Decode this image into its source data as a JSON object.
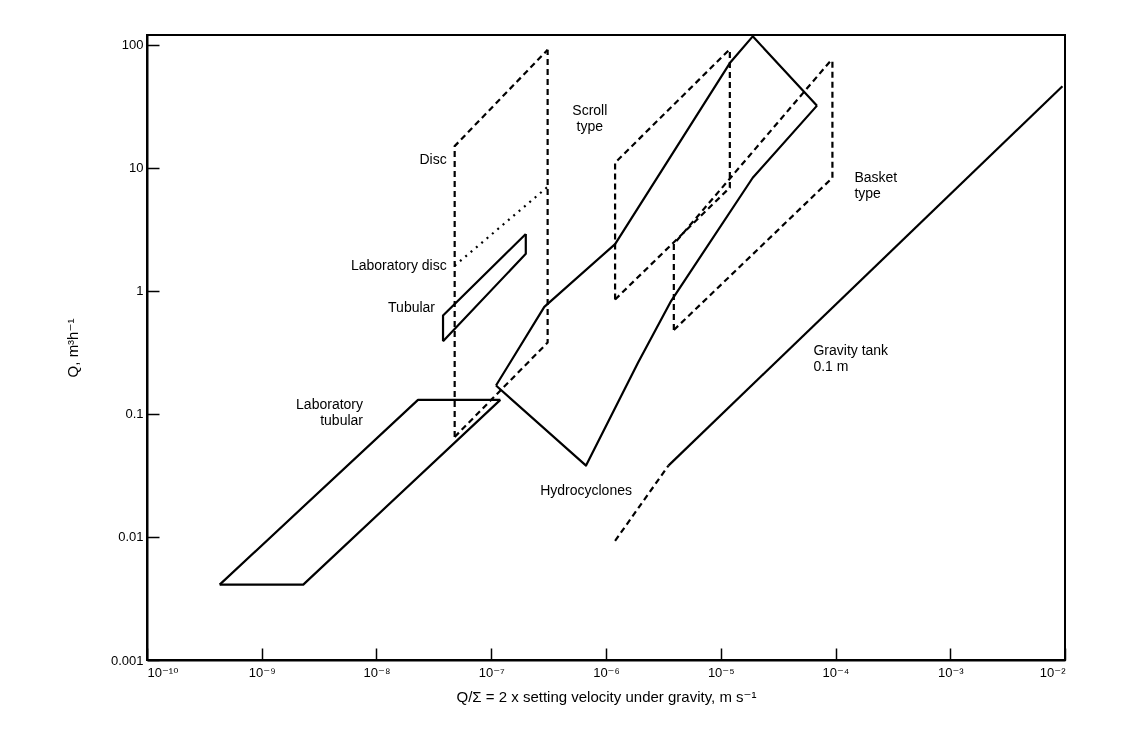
{
  "chart_data": {
    "type": "line",
    "xlabel": "Q/Σ = 2 x setting velocity under gravity, m s⁻¹",
    "ylabel": "Q, m³h⁻¹",
    "log": "xy",
    "grid": false,
    "legend": false,
    "marker": "none",
    "xlim": [
      1e-10,
      0.01
    ],
    "xticks": [
      {
        "value": 1e-10,
        "label": "10⁻¹⁰"
      },
      {
        "value": 1e-09,
        "label": "10⁻⁹"
      },
      {
        "value": 1e-08,
        "label": "10⁻⁸"
      },
      {
        "value": 1e-07,
        "label": "10⁻⁷"
      },
      {
        "value": 1e-06,
        "label": "10⁻⁶"
      },
      {
        "value": 1e-05,
        "label": "10⁻⁵"
      },
      {
        "value": 0.0001,
        "label": "10⁻⁴"
      },
      {
        "value": 0.001,
        "label": "10⁻³"
      },
      {
        "value": 0.01,
        "label": "10⁻²"
      }
    ],
    "ylim": [
      0.001,
      120
    ],
    "yticks": [
      0.001,
      0.01,
      0.1,
      1,
      10,
      100
    ],
    "series": [
      {
        "name": "Disc",
        "color": "#000000",
        "line_style": "dashed",
        "x": [
          4.8e-08,
          4.8e-08,
          3.1e-07
        ],
        "values": [
          0.065,
          15,
          91
        ]
      },
      {
        "color": "#000000",
        "line_style": "dashed",
        "x": [
          4.8e-08,
          3.1e-07,
          3.1e-07
        ],
        "values": [
          0.065,
          0.38,
          91
        ]
      },
      {
        "name": "Tubular",
        "color": "#000000",
        "line_style": "solid",
        "x": [
          3.8e-08,
          3.8e-08,
          2e-07
        ],
        "values": [
          0.39,
          0.63,
          2.9
        ]
      },
      {
        "color": "#000000",
        "line_style": "solid",
        "x": [
          3.8e-08,
          2e-07,
          2e-07
        ],
        "values": [
          0.39,
          2.0,
          2.9
        ]
      },
      {
        "name": "Laboratory disc",
        "color": "#000000",
        "line_style": "dotted",
        "x": [
          4.8e-08,
          3.1e-07
        ],
        "values": [
          1.6,
          7.0
        ]
      },
      {
        "name": "Laboratory\ntubular",
        "color": "#000000",
        "line_style": "solid",
        "x": [
          4.3e-10,
          2.3e-08,
          1.2e-07
        ],
        "values": [
          0.0041,
          0.13,
          0.13
        ]
      },
      {
        "color": "#000000",
        "line_style": "solid",
        "x": [
          4.3e-10,
          2.3e-09,
          1.2e-07
        ],
        "values": [
          0.0041,
          0.0041,
          0.13
        ]
      },
      {
        "color": "#000000",
        "line_style": "solid",
        "x": [
          1.1e-07,
          2.9e-07,
          1.2e-06,
          1.2e-05,
          1.9e-05,
          6.9e-05
        ],
        "values": [
          0.17,
          0.74,
          2.4,
          71,
          117,
          32
        ]
      },
      {
        "name": "Hydrocyclones",
        "color": "#000000",
        "line_style": "solid",
        "x": [
          1.1e-07,
          6.7e-07,
          1.9e-06,
          3.7e-06,
          1.9e-05,
          6.9e-05
        ],
        "values": [
          0.17,
          0.038,
          0.26,
          0.83,
          8.3,
          32
        ]
      },
      {
        "name": "Scroll\ntype",
        "color": "#000000",
        "line_style": "dashed",
        "x": [
          1.2e-06,
          1.2e-06,
          1.2e-05
        ],
        "values": [
          0.85,
          11,
          92
        ]
      },
      {
        "color": "#000000",
        "line_style": "dashed",
        "x": [
          1.2e-06,
          1.2e-05,
          1.2e-05
        ],
        "values": [
          0.85,
          6.9,
          92
        ]
      },
      {
        "color": "#000000",
        "line_style": "dashed",
        "x": [
          3.9e-06,
          3.9e-06,
          9.4e-05
        ],
        "values": [
          0.48,
          2.4,
          77
        ]
      },
      {
        "name": "Basket\ntype",
        "color": "#000000",
        "line_style": "dashed",
        "x": [
          3.9e-06,
          9.4e-05,
          9.4e-05
        ],
        "values": [
          0.48,
          8.3,
          77
        ]
      },
      {
        "color": "#000000",
        "line_style": "dashed",
        "x": [
          1.2e-06,
          3.5e-06
        ],
        "values": [
          0.0093,
          0.038
        ]
      },
      {
        "name": "Gravity tank\n0.1 m",
        "color": "#000000",
        "line_style": "solid",
        "x": [
          3.5e-06,
          0.0095
        ],
        "values": [
          0.038,
          46
        ]
      }
    ]
  }
}
